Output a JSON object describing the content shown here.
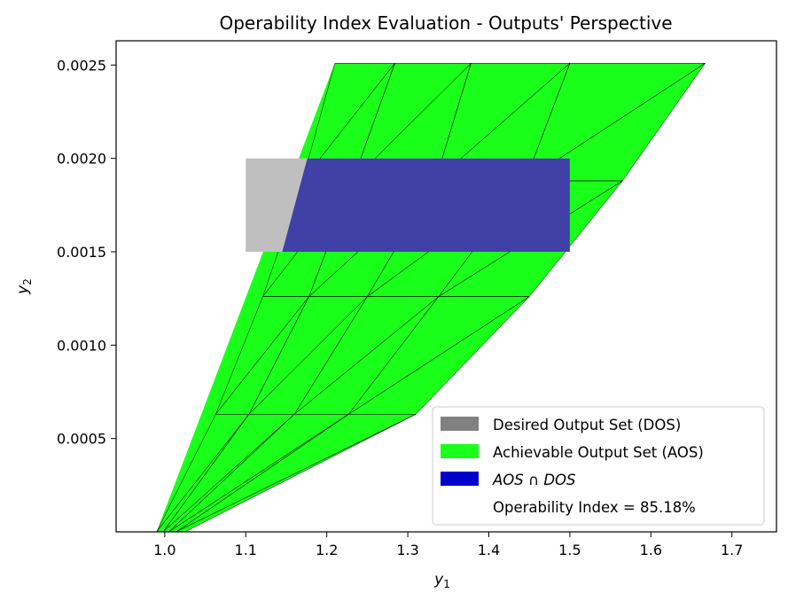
{
  "chart_data": {
    "type": "area",
    "title": "Operability Index Evaluation - Outputs' Perspective",
    "xlabel": "y",
    "xlabel_sub": "1",
    "ylabel": "y",
    "ylabel_sub": "2",
    "xlim": [
      0.94,
      1.755
    ],
    "ylim": [
      0.0,
      0.00263
    ],
    "xticks": [
      1.0,
      1.1,
      1.2,
      1.3,
      1.4,
      1.5,
      1.6,
      1.7
    ],
    "xtick_labels": [
      "1.0",
      "1.1",
      "1.2",
      "1.3",
      "1.4",
      "1.5",
      "1.6",
      "1.7"
    ],
    "yticks": [
      0.0005,
      0.001,
      0.0015,
      0.002,
      0.0025
    ],
    "ytick_labels": [
      "0.0005",
      "0.0010",
      "0.0015",
      "0.0020",
      "0.0025"
    ],
    "colors": {
      "dos": "#bfbfbf",
      "aos": "#1aff1a",
      "intersection": "#4040a6",
      "legend_dos": "#808080",
      "legend_aos": "#1aff1a",
      "legend_intersection": "#0000cc",
      "mesh_line": "#000000"
    },
    "aos_vertices": [
      [
        0.99,
        0.0
      ],
      [
        1.21,
        0.00251
      ],
      [
        1.667,
        0.00251
      ],
      [
        1.565,
        0.00188
      ],
      [
        1.45,
        0.00126
      ],
      [
        1.31,
        0.00063
      ],
      [
        1.025,
        0.0
      ]
    ],
    "aos_nodes": {
      "top": [
        [
          1.21,
          0.00251
        ],
        [
          1.284,
          0.00251
        ],
        [
          1.378,
          0.00251
        ],
        [
          1.5,
          0.00251
        ],
        [
          1.667,
          0.00251
        ]
      ],
      "row_0188": [
        [
          1.17,
          0.00188
        ],
        [
          1.232,
          0.00188
        ],
        [
          1.334,
          0.00188
        ],
        [
          1.445,
          0.00188
        ],
        [
          1.565,
          0.00188
        ]
      ],
      "row_0126": [
        [
          1.121,
          0.00126
        ],
        [
          1.178,
          0.00126
        ],
        [
          1.25,
          0.00126
        ],
        [
          1.338,
          0.00126
        ],
        [
          1.45,
          0.00126
        ]
      ],
      "row_0063": [
        [
          1.063,
          0.00063
        ],
        [
          1.104,
          0.00063
        ],
        [
          1.16,
          0.00063
        ],
        [
          1.227,
          0.00063
        ],
        [
          1.31,
          0.00063
        ]
      ],
      "bottom": [
        [
          0.99,
          0.0
        ],
        [
          0.998,
          0.0
        ],
        [
          1.005,
          0.0
        ],
        [
          1.014,
          0.0
        ],
        [
          1.025,
          0.0
        ]
      ]
    },
    "dos_rect": {
      "x": [
        1.1,
        1.5
      ],
      "y": [
        0.0015,
        0.002
      ]
    },
    "intersection_polygon": [
      [
        1.145,
        0.0015
      ],
      [
        1.176,
        0.002
      ],
      [
        1.5,
        0.002
      ],
      [
        1.5,
        0.0015
      ]
    ],
    "legend": {
      "placement": "bottom-right",
      "entries": [
        {
          "label": "Desired Output Set (DOS)",
          "key": "legend_dos"
        },
        {
          "label": "Achievable Output Set (AOS)",
          "key": "legend_aos"
        },
        {
          "label": "AOS ∩ DOS",
          "key": "legend_intersection",
          "italic": true
        },
        {
          "label": "Operability Index = 85.18%",
          "key": null
        }
      ]
    }
  }
}
